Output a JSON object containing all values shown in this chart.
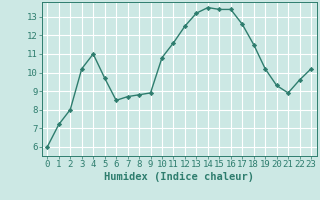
{
  "x": [
    0,
    1,
    2,
    3,
    4,
    5,
    6,
    7,
    8,
    9,
    10,
    11,
    12,
    13,
    14,
    15,
    16,
    17,
    18,
    19,
    20,
    21,
    22,
    23
  ],
  "y": [
    6.0,
    7.2,
    8.0,
    10.2,
    11.0,
    9.7,
    8.5,
    8.7,
    8.8,
    8.9,
    10.8,
    11.6,
    12.5,
    13.2,
    13.5,
    13.4,
    13.4,
    12.6,
    11.5,
    10.2,
    9.3,
    8.9,
    9.6,
    10.2
  ],
  "xlabel": "Humidex (Indice chaleur)",
  "xlim": [
    -0.5,
    23.5
  ],
  "ylim": [
    5.5,
    13.8
  ],
  "yticks": [
    6,
    7,
    8,
    9,
    10,
    11,
    12,
    13
  ],
  "xticks": [
    0,
    1,
    2,
    3,
    4,
    5,
    6,
    7,
    8,
    9,
    10,
    11,
    12,
    13,
    14,
    15,
    16,
    17,
    18,
    19,
    20,
    21,
    22,
    23
  ],
  "line_color": "#2e7d6e",
  "marker": "D",
  "marker_size": 2.2,
  "bg_color": "#cce8e4",
  "grid_color": "#ffffff",
  "tick_label_fontsize": 6.5,
  "xlabel_fontsize": 7.5
}
